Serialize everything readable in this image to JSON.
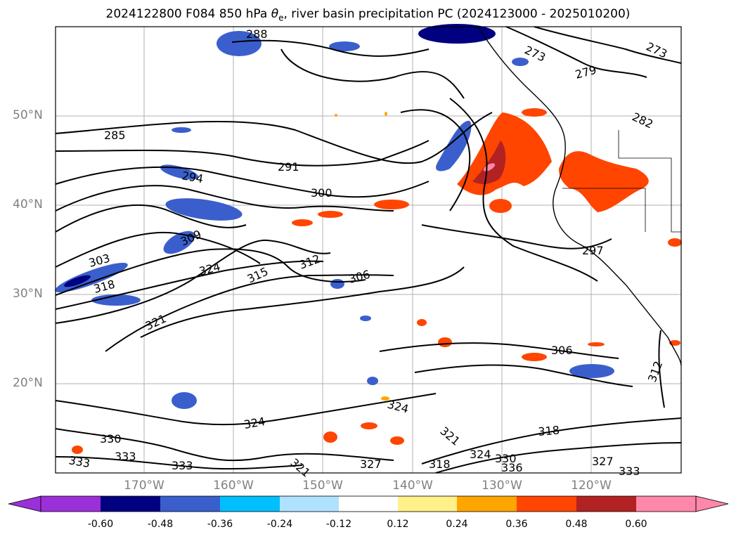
{
  "title": {
    "prefix": "2024122800 F084 850 hPa ",
    "symbol": "θ",
    "subscript": "e",
    "suffix": ", river basin precipitation PC (2024123000 - 2025010200)"
  },
  "axes": {
    "lat_labels": [
      "50°N",
      "40°N",
      "30°N",
      "20°N"
    ],
    "lon_labels": [
      "170°W",
      "160°W",
      "150°W",
      "140°W",
      "130°W",
      "120°W"
    ]
  },
  "colorbar": {
    "labels": [
      "-0.60",
      "-0.48",
      "-0.36",
      "-0.24",
      "-0.12",
      "0.12",
      "0.24",
      "0.36",
      "0.48",
      "0.60"
    ],
    "colors": [
      "#9b30d9",
      "#000080",
      "#3a5fcd",
      "#00bfff",
      "#b0e2ff",
      "#ffffff",
      "#fff08a",
      "#ffa500",
      "#ff4500",
      "#b22222",
      "#ff88aa",
      "#ff88aa"
    ]
  },
  "contour_labels": [
    "288",
    "273",
    "273",
    "279",
    "282",
    "285",
    "291",
    "294",
    "300",
    "309",
    "303",
    "318",
    "324",
    "315",
    "312",
    "306",
    "297",
    "321",
    "306",
    "312",
    "324",
    "324",
    "321",
    "318",
    "330",
    "333",
    "333",
    "321",
    "327",
    "318",
    "324",
    "330",
    "336",
    "327",
    "333"
  ]
}
